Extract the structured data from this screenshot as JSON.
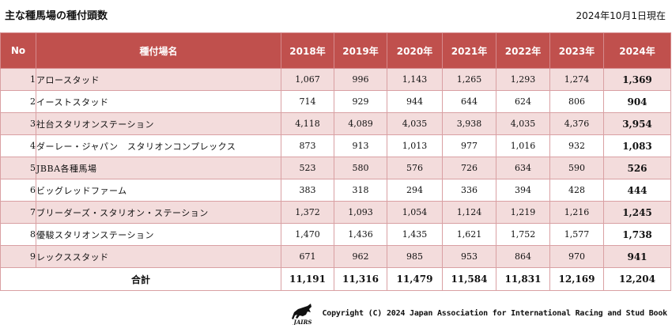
{
  "title": "主な種馬場の種付頭数",
  "as_of": "2024年10月1日現在",
  "headers": {
    "no": "No",
    "name": "種付場名",
    "years": [
      "2018年",
      "2019年",
      "2020年",
      "2021年",
      "2022年",
      "2023年",
      "2024年"
    ]
  },
  "rows": [
    {
      "no": "1",
      "name": "アロースタッド",
      "values": [
        "1,067",
        "996",
        "1,143",
        "1,265",
        "1,293",
        "1,274",
        "1,369"
      ]
    },
    {
      "no": "2",
      "name": "イーストスタッド",
      "values": [
        "714",
        "929",
        "944",
        "644",
        "624",
        "806",
        "904"
      ]
    },
    {
      "no": "3",
      "name": "社台スタリオンステーション",
      "values": [
        "4,118",
        "4,089",
        "4,035",
        "3,938",
        "4,035",
        "4,376",
        "3,954"
      ]
    },
    {
      "no": "4",
      "name": "ダーレー・ジャパン　スタリオンコンプレックス",
      "values": [
        "873",
        "913",
        "1,013",
        "977",
        "1,016",
        "932",
        "1,083"
      ]
    },
    {
      "no": "5",
      "name": "JBBA各種馬場",
      "values": [
        "523",
        "580",
        "576",
        "726",
        "634",
        "590",
        "526"
      ]
    },
    {
      "no": "6",
      "name": "ビッグレッドファーム",
      "values": [
        "383",
        "318",
        "294",
        "336",
        "394",
        "428",
        "444"
      ]
    },
    {
      "no": "7",
      "name": "ブリーダーズ・スタリオン・ステーション",
      "values": [
        "1,372",
        "1,093",
        "1,054",
        "1,124",
        "1,219",
        "1,216",
        "1,245"
      ]
    },
    {
      "no": "8",
      "name": "優駿スタリオンステーション",
      "values": [
        "1,470",
        "1,436",
        "1,435",
        "1,621",
        "1,752",
        "1,577",
        "1,738"
      ]
    },
    {
      "no": "9",
      "name": "レックススタッド",
      "values": [
        "671",
        "962",
        "985",
        "953",
        "864",
        "970",
        "941"
      ]
    }
  ],
  "total": {
    "label": "合計",
    "values": [
      "11,191",
      "11,316",
      "11,479",
      "11,584",
      "11,831",
      "12,169",
      "12,204"
    ]
  },
  "footer": {
    "logo_text": "JAIRS",
    "copyright": "Copyright (C) 2024 Japan Association for International Racing and Stud Book"
  }
}
